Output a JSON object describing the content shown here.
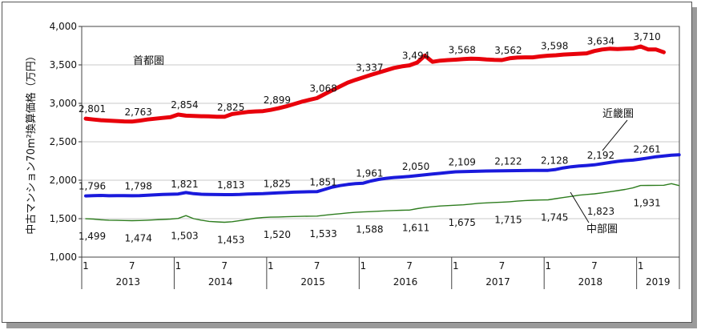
{
  "chart_data": {
    "type": "line",
    "title": "",
    "ylabel": "中古マンション70m²換算価格（万円）",
    "ylim": [
      1000,
      4000
    ],
    "yticks": [
      "1,000",
      "1,500",
      "2,000",
      "2,500",
      "3,000",
      "3,500",
      "4,000"
    ],
    "grid": true,
    "x_month_labels": [
      "1",
      "7",
      "1",
      "7",
      "1",
      "7",
      "1",
      "7",
      "1",
      "7",
      "1",
      "7",
      "1"
    ],
    "x_year_labels": [
      "2013",
      "2014",
      "2015",
      "2016",
      "2017",
      "2018",
      "2019"
    ],
    "series": [
      {
        "name": "首都圏",
        "color": "#e8000b",
        "values": [
          2801,
          2790,
          2780,
          2775,
          2770,
          2765,
          2763,
          2775,
          2790,
          2800,
          2810,
          2820,
          2854,
          2840,
          2835,
          2832,
          2830,
          2826,
          2825,
          2860,
          2875,
          2888,
          2895,
          2899,
          2915,
          2935,
          2960,
          2990,
          3020,
          3045,
          3068,
          3120,
          3170,
          3220,
          3270,
          3305,
          3337,
          3370,
          3400,
          3430,
          3460,
          3480,
          3494,
          3530,
          3620,
          3540,
          3555,
          3562,
          3568,
          3575,
          3580,
          3578,
          3570,
          3565,
          3562,
          3585,
          3595,
          3598,
          3598,
          3610,
          3620,
          3625,
          3634,
          3640,
          3645,
          3650,
          3680,
          3700,
          3710,
          3705,
          3710,
          3715,
          3740,
          3700,
          3700,
          3665
        ],
        "labels": [
          "2,801",
          "2,763",
          "2,854",
          "2,825",
          "2,899",
          "3,068",
          "3,337",
          "3,494",
          "3,568",
          "3,562",
          "3,598",
          "3,634",
          "3,710"
        ]
      },
      {
        "name": "近畿圏",
        "color": "#1a1adc",
        "values": [
          1796,
          1800,
          1802,
          1798,
          1799,
          1799,
          1798,
          1800,
          1805,
          1810,
          1815,
          1818,
          1821,
          1840,
          1825,
          1818,
          1815,
          1814,
          1813,
          1812,
          1815,
          1820,
          1823,
          1825,
          1830,
          1835,
          1840,
          1845,
          1848,
          1850,
          1851,
          1880,
          1910,
          1930,
          1945,
          1955,
          1961,
          1990,
          2010,
          2025,
          2035,
          2042,
          2050,
          2060,
          2070,
          2080,
          2090,
          2100,
          2109,
          2112,
          2115,
          2118,
          2120,
          2121,
          2122,
          2124,
          2125,
          2126,
          2127,
          2128,
          2128,
          2140,
          2160,
          2175,
          2185,
          2192,
          2200,
          2215,
          2230,
          2245,
          2255,
          2261,
          2275,
          2290,
          2305,
          2315,
          2325,
          2330
        ],
        "labels": [
          "1,796",
          "1,798",
          "1,821",
          "1,813",
          "1,825",
          "1,851",
          "1,961",
          "2,050",
          "2,109",
          "2,122",
          "2,128",
          "2,192",
          "2,261"
        ]
      },
      {
        "name": "中部圏",
        "color": "#2e7d1f",
        "values": [
          1499,
          1495,
          1485,
          1480,
          1478,
          1476,
          1474,
          1476,
          1480,
          1485,
          1490,
          1495,
          1503,
          1540,
          1500,
          1480,
          1465,
          1458,
          1453,
          1460,
          1475,
          1490,
          1505,
          1515,
          1520,
          1522,
          1525,
          1528,
          1530,
          1532,
          1533,
          1545,
          1555,
          1565,
          1575,
          1582,
          1588,
          1592,
          1597,
          1602,
          1606,
          1609,
          1611,
          1630,
          1645,
          1655,
          1665,
          1670,
          1675,
          1680,
          1690,
          1700,
          1705,
          1710,
          1715,
          1720,
          1728,
          1735,
          1740,
          1743,
          1745,
          1760,
          1775,
          1790,
          1805,
          1815,
          1823,
          1835,
          1850,
          1865,
          1880,
          1900,
          1931,
          1932,
          1933,
          1934,
          1955,
          1930
        ],
        "labels": [
          "1,499",
          "1,474",
          "1,503",
          "1,453",
          "1,520",
          "1,533",
          "1,588",
          "1,611",
          "1,675",
          "1,715",
          "1,745",
          "1,823",
          "1,931"
        ]
      }
    ]
  }
}
